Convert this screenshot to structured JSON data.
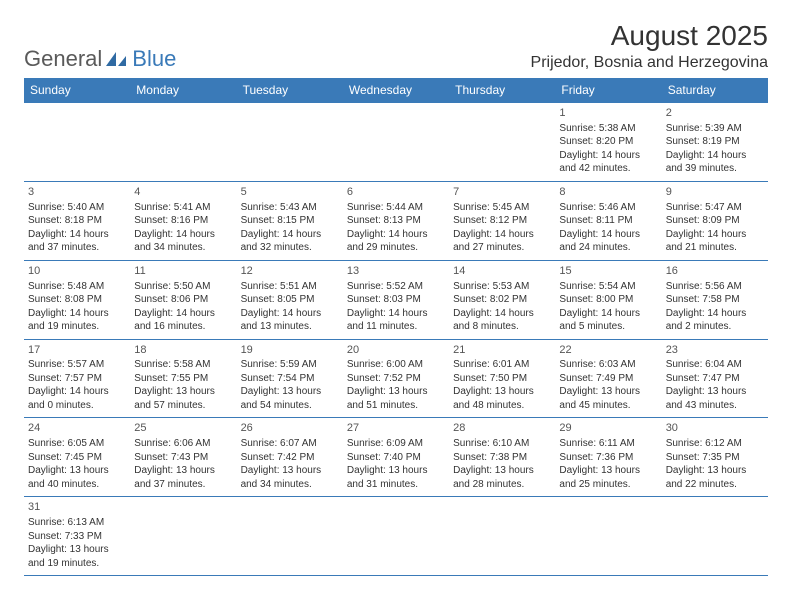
{
  "logo": {
    "text1": "General",
    "text2": "Blue"
  },
  "title": "August 2025",
  "location": "Prijedor, Bosnia and Herzegovina",
  "colors": {
    "header_bg": "#3a7ab8",
    "header_fg": "#ffffff",
    "border": "#3a7ab8",
    "text": "#333333"
  },
  "dayHeaders": [
    "Sunday",
    "Monday",
    "Tuesday",
    "Wednesday",
    "Thursday",
    "Friday",
    "Saturday"
  ],
  "weeks": [
    [
      null,
      null,
      null,
      null,
      null,
      {
        "n": "1",
        "sr": "Sunrise: 5:38 AM",
        "ss": "Sunset: 8:20 PM",
        "dl": "Daylight: 14 hours and 42 minutes."
      },
      {
        "n": "2",
        "sr": "Sunrise: 5:39 AM",
        "ss": "Sunset: 8:19 PM",
        "dl": "Daylight: 14 hours and 39 minutes."
      }
    ],
    [
      {
        "n": "3",
        "sr": "Sunrise: 5:40 AM",
        "ss": "Sunset: 8:18 PM",
        "dl": "Daylight: 14 hours and 37 minutes."
      },
      {
        "n": "4",
        "sr": "Sunrise: 5:41 AM",
        "ss": "Sunset: 8:16 PM",
        "dl": "Daylight: 14 hours and 34 minutes."
      },
      {
        "n": "5",
        "sr": "Sunrise: 5:43 AM",
        "ss": "Sunset: 8:15 PM",
        "dl": "Daylight: 14 hours and 32 minutes."
      },
      {
        "n": "6",
        "sr": "Sunrise: 5:44 AM",
        "ss": "Sunset: 8:13 PM",
        "dl": "Daylight: 14 hours and 29 minutes."
      },
      {
        "n": "7",
        "sr": "Sunrise: 5:45 AM",
        "ss": "Sunset: 8:12 PM",
        "dl": "Daylight: 14 hours and 27 minutes."
      },
      {
        "n": "8",
        "sr": "Sunrise: 5:46 AM",
        "ss": "Sunset: 8:11 PM",
        "dl": "Daylight: 14 hours and 24 minutes."
      },
      {
        "n": "9",
        "sr": "Sunrise: 5:47 AM",
        "ss": "Sunset: 8:09 PM",
        "dl": "Daylight: 14 hours and 21 minutes."
      }
    ],
    [
      {
        "n": "10",
        "sr": "Sunrise: 5:48 AM",
        "ss": "Sunset: 8:08 PM",
        "dl": "Daylight: 14 hours and 19 minutes."
      },
      {
        "n": "11",
        "sr": "Sunrise: 5:50 AM",
        "ss": "Sunset: 8:06 PM",
        "dl": "Daylight: 14 hours and 16 minutes."
      },
      {
        "n": "12",
        "sr": "Sunrise: 5:51 AM",
        "ss": "Sunset: 8:05 PM",
        "dl": "Daylight: 14 hours and 13 minutes."
      },
      {
        "n": "13",
        "sr": "Sunrise: 5:52 AM",
        "ss": "Sunset: 8:03 PM",
        "dl": "Daylight: 14 hours and 11 minutes."
      },
      {
        "n": "14",
        "sr": "Sunrise: 5:53 AM",
        "ss": "Sunset: 8:02 PM",
        "dl": "Daylight: 14 hours and 8 minutes."
      },
      {
        "n": "15",
        "sr": "Sunrise: 5:54 AM",
        "ss": "Sunset: 8:00 PM",
        "dl": "Daylight: 14 hours and 5 minutes."
      },
      {
        "n": "16",
        "sr": "Sunrise: 5:56 AM",
        "ss": "Sunset: 7:58 PM",
        "dl": "Daylight: 14 hours and 2 minutes."
      }
    ],
    [
      {
        "n": "17",
        "sr": "Sunrise: 5:57 AM",
        "ss": "Sunset: 7:57 PM",
        "dl": "Daylight: 14 hours and 0 minutes."
      },
      {
        "n": "18",
        "sr": "Sunrise: 5:58 AM",
        "ss": "Sunset: 7:55 PM",
        "dl": "Daylight: 13 hours and 57 minutes."
      },
      {
        "n": "19",
        "sr": "Sunrise: 5:59 AM",
        "ss": "Sunset: 7:54 PM",
        "dl": "Daylight: 13 hours and 54 minutes."
      },
      {
        "n": "20",
        "sr": "Sunrise: 6:00 AM",
        "ss": "Sunset: 7:52 PM",
        "dl": "Daylight: 13 hours and 51 minutes."
      },
      {
        "n": "21",
        "sr": "Sunrise: 6:01 AM",
        "ss": "Sunset: 7:50 PM",
        "dl": "Daylight: 13 hours and 48 minutes."
      },
      {
        "n": "22",
        "sr": "Sunrise: 6:03 AM",
        "ss": "Sunset: 7:49 PM",
        "dl": "Daylight: 13 hours and 45 minutes."
      },
      {
        "n": "23",
        "sr": "Sunrise: 6:04 AM",
        "ss": "Sunset: 7:47 PM",
        "dl": "Daylight: 13 hours and 43 minutes."
      }
    ],
    [
      {
        "n": "24",
        "sr": "Sunrise: 6:05 AM",
        "ss": "Sunset: 7:45 PM",
        "dl": "Daylight: 13 hours and 40 minutes."
      },
      {
        "n": "25",
        "sr": "Sunrise: 6:06 AM",
        "ss": "Sunset: 7:43 PM",
        "dl": "Daylight: 13 hours and 37 minutes."
      },
      {
        "n": "26",
        "sr": "Sunrise: 6:07 AM",
        "ss": "Sunset: 7:42 PM",
        "dl": "Daylight: 13 hours and 34 minutes."
      },
      {
        "n": "27",
        "sr": "Sunrise: 6:09 AM",
        "ss": "Sunset: 7:40 PM",
        "dl": "Daylight: 13 hours and 31 minutes."
      },
      {
        "n": "28",
        "sr": "Sunrise: 6:10 AM",
        "ss": "Sunset: 7:38 PM",
        "dl": "Daylight: 13 hours and 28 minutes."
      },
      {
        "n": "29",
        "sr": "Sunrise: 6:11 AM",
        "ss": "Sunset: 7:36 PM",
        "dl": "Daylight: 13 hours and 25 minutes."
      },
      {
        "n": "30",
        "sr": "Sunrise: 6:12 AM",
        "ss": "Sunset: 7:35 PM",
        "dl": "Daylight: 13 hours and 22 minutes."
      }
    ],
    [
      {
        "n": "31",
        "sr": "Sunrise: 6:13 AM",
        "ss": "Sunset: 7:33 PM",
        "dl": "Daylight: 13 hours and 19 minutes."
      },
      null,
      null,
      null,
      null,
      null,
      null
    ]
  ]
}
